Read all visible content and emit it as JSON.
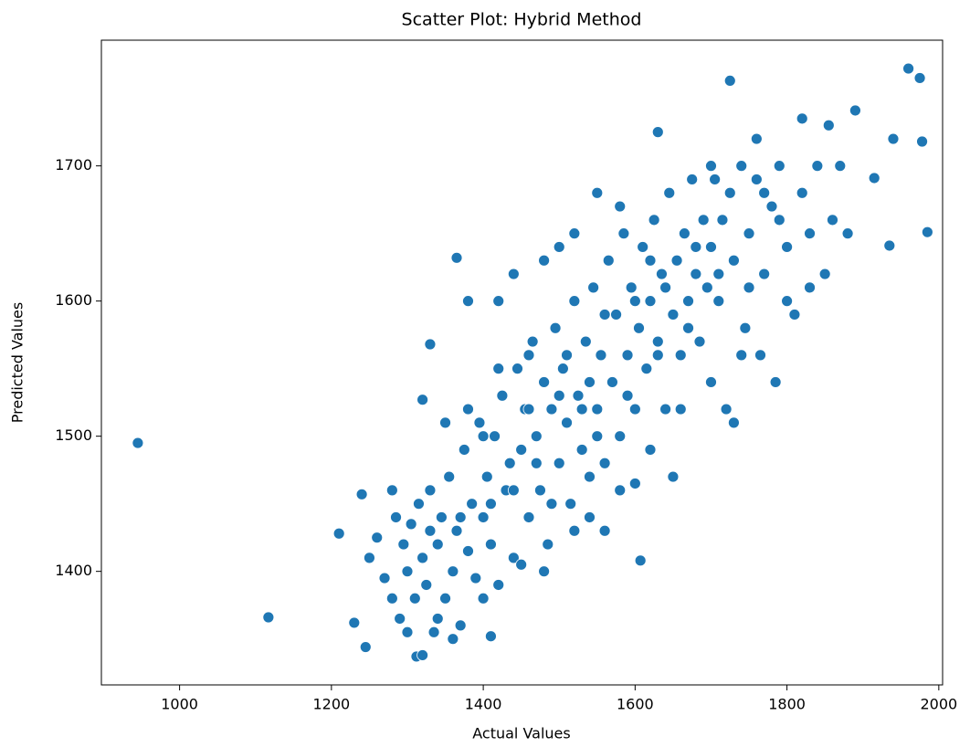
{
  "chart_data": {
    "type": "scatter",
    "title": "Scatter Plot: Hybrid Method",
    "x_label": "Actual Values",
    "y_label": "Predicted Values",
    "color": "#1f77b4",
    "xlim": [
      897,
      2005
    ],
    "ylim": [
      1316,
      1793
    ],
    "xticks": [
      1000,
      1200,
      1400,
      1600,
      1800,
      2000
    ],
    "yticks": [
      1400,
      1500,
      1600,
      1700
    ],
    "x": [
      1250,
      1260,
      1270,
      1280,
      1285,
      1290,
      1295,
      1300,
      1305,
      1310,
      1315,
      1320,
      1325,
      1330,
      1335,
      1340,
      1345,
      1350,
      1355,
      1360,
      1365,
      1370,
      1375,
      1380,
      1385,
      1390,
      1395,
      1400,
      1405,
      1410,
      1415,
      1420,
      1425,
      1430,
      1435,
      1440,
      1445,
      1450,
      1455,
      1460,
      1465,
      1470,
      1475,
      1480,
      1485,
      1490,
      1495,
      1500,
      1505,
      1510,
      1515,
      1520,
      1525,
      1530,
      1535,
      1540,
      1545,
      1550,
      1555,
      1560,
      1565,
      1570,
      1575,
      1580,
      1585,
      1590,
      1595,
      1600,
      1605,
      1610,
      1615,
      1620,
      1625,
      1630,
      1635,
      1640,
      1645,
      1650,
      1655,
      1660,
      1665,
      1670,
      1675,
      1680,
      1685,
      1690,
      1695,
      1700,
      1705,
      1710,
      1715,
      1720,
      1725,
      1730,
      1740,
      1745,
      1750,
      1760,
      1765,
      1770,
      1780,
      1785,
      1790,
      1800,
      1810,
      1820,
      1830,
      1840,
      1850,
      1860,
      1870,
      1880,
      1855,
      1820,
      1800,
      1760,
      1700,
      1650,
      1620,
      1600,
      1560,
      1520,
      1480,
      1450,
      1400,
      1360,
      1340,
      1300,
      1280,
      1420,
      1380,
      1440,
      1480,
      1500,
      1550,
      1460,
      1420,
      1380,
      1350,
      1520,
      1580,
      1660,
      1700,
      1730,
      1740,
      1580,
      1540,
      1490,
      1440,
      1400,
      1460,
      1500,
      1540,
      1560,
      1600,
      1640,
      1680,
      1620,
      1530,
      1470,
      1410,
      1370,
      1330,
      1510,
      1550,
      1590,
      1630,
      1670,
      1710,
      1750,
      1790,
      1830,
      1770,
      945,
      1117,
      1960,
      1975,
      1985,
      1978,
      1940,
      1935,
      1915,
      1890,
      1725,
      1630,
      1607,
      1365,
      1320,
      1330,
      1210,
      1240,
      1245,
      1312,
      1320,
      1410,
      1230
    ],
    "y": [
      1410,
      1425,
      1395,
      1380,
      1440,
      1365,
      1420,
      1400,
      1435,
      1380,
      1450,
      1410,
      1390,
      1460,
      1355,
      1420,
      1440,
      1380,
      1470,
      1400,
      1430,
      1360,
      1490,
      1415,
      1450,
      1395,
      1510,
      1440,
      1470,
      1420,
      1500,
      1390,
      1530,
      1460,
      1480,
      1410,
      1550,
      1490,
      1520,
      1440,
      1570,
      1500,
      1460,
      1540,
      1420,
      1520,
      1580,
      1480,
      1550,
      1510,
      1450,
      1600,
      1530,
      1490,
      1570,
      1440,
      1610,
      1520,
      1560,
      1480,
      1630,
      1540,
      1590,
      1500,
      1650,
      1560,
      1610,
      1520,
      1580,
      1640,
      1550,
      1600,
      1660,
      1570,
      1620,
      1520,
      1680,
      1590,
      1630,
      1560,
      1650,
      1600,
      1690,
      1620,
      1570,
      1660,
      1610,
      1640,
      1690,
      1600,
      1660,
      1520,
      1680,
      1630,
      1700,
      1580,
      1650,
      1690,
      1560,
      1620,
      1670,
      1540,
      1700,
      1640,
      1590,
      1680,
      1650,
      1700,
      1620,
      1660,
      1700,
      1650,
      1730,
      1735,
      1600,
      1720,
      1700,
      1470,
      1490,
      1465,
      1430,
      1430,
      1400,
      1405,
      1380,
      1350,
      1365,
      1355,
      1460,
      1600,
      1600,
      1620,
      1630,
      1640,
      1680,
      1560,
      1550,
      1520,
      1510,
      1650,
      1670,
      1520,
      1540,
      1510,
      1560,
      1460,
      1470,
      1450,
      1460,
      1500,
      1520,
      1530,
      1540,
      1590,
      1600,
      1610,
      1640,
      1630,
      1520,
      1480,
      1450,
      1440,
      1430,
      1560,
      1500,
      1530,
      1560,
      1580,
      1620,
      1610,
      1660,
      1610,
      1680,
      1495,
      1366,
      1772,
      1765,
      1651,
      1718,
      1720,
      1641,
      1691,
      1741,
      1763,
      1725,
      1408,
      1632,
      1527,
      1568,
      1428,
      1457,
      1344,
      1337,
      1338,
      1352,
      1362
    ]
  }
}
